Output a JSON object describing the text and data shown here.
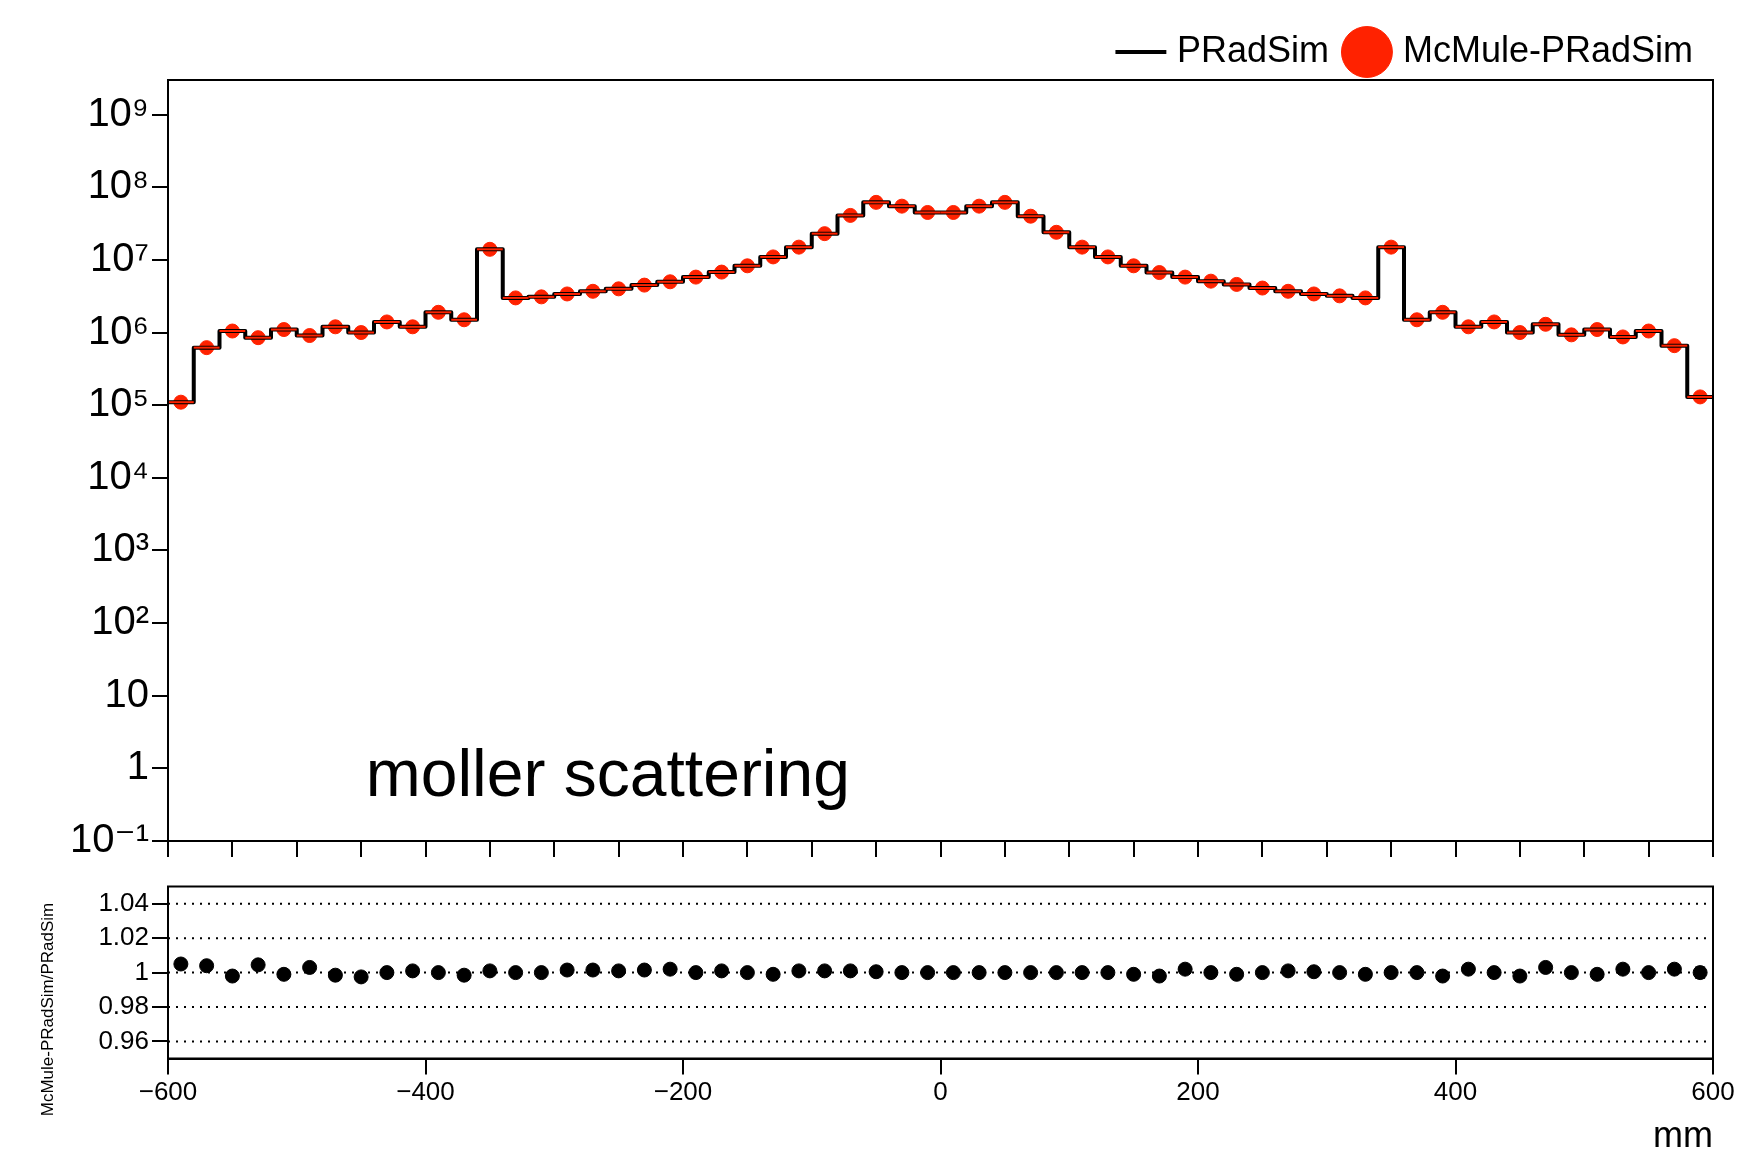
{
  "chart_data": [
    {
      "type": "histogram",
      "bins": [
        -600,
        -580,
        -560,
        -540,
        -520,
        -500,
        -480,
        -460,
        -440,
        -420,
        -400,
        -380,
        -360,
        -340,
        -320,
        -300,
        -280,
        -260,
        -240,
        -220,
        -200,
        -180,
        -160,
        -140,
        -120,
        -100,
        -80,
        -60,
        -40,
        -20,
        0,
        20,
        40,
        60,
        80,
        100,
        120,
        140,
        160,
        180,
        200,
        220,
        240,
        260,
        280,
        300,
        320,
        340,
        360,
        380,
        400,
        420,
        440,
        460,
        480,
        500,
        520,
        540,
        560,
        580,
        600
      ],
      "series": [
        {
          "name": "PRadSim",
          "color": "#000000",
          "values": [
            110000,
            620000,
            1050000,
            850000,
            1100000,
            910000,
            1200000,
            1000000,
            1400000,
            1200000,
            1900000,
            1500000,
            14000000,
            3000000,
            3100000,
            3400000,
            3700000,
            4000000,
            4500000,
            5000000,
            5800000,
            6800000,
            8300000,
            11000000,
            15000000,
            23000000,
            41000000,
            62000000,
            55000000,
            45000000,
            45000000,
            55000000,
            62000000,
            40000000,
            24000000,
            15000000,
            11000000,
            8300000,
            6700000,
            5800000,
            5100000,
            4600000,
            4100000,
            3700000,
            3400000,
            3200000,
            3000000,
            15000000,
            1500000,
            1900000,
            1200000,
            1400000,
            1000000,
            1300000,
            930000,
            1100000,
            870000,
            1050000,
            660000,
            130000
          ]
        },
        {
          "name": "McMule-PRadSim",
          "type": "scatter",
          "color": "#ff2200",
          "x": [
            -590,
            -570,
            -550,
            -530,
            -510,
            -490,
            -470,
            -450,
            -430,
            -410,
            -390,
            -370,
            -350,
            -330,
            -310,
            -290,
            -270,
            -250,
            -230,
            -210,
            -190,
            -170,
            -150,
            -130,
            -110,
            -90,
            -70,
            -50,
            -30,
            -10,
            10,
            30,
            50,
            70,
            90,
            110,
            130,
            150,
            170,
            190,
            210,
            230,
            250,
            270,
            290,
            310,
            330,
            350,
            370,
            390,
            410,
            430,
            450,
            470,
            490,
            510,
            530,
            550,
            570,
            590
          ],
          "xerrors": [
            10,
            10,
            10,
            10,
            10,
            10,
            10,
            10,
            10,
            10,
            10,
            10,
            10,
            10,
            10,
            10,
            10,
            10,
            10,
            10,
            10,
            10,
            10,
            10,
            10,
            10,
            10,
            10,
            10,
            10,
            10,
            10,
            10,
            10,
            10,
            10,
            10,
            10,
            10,
            10,
            10,
            10,
            10,
            10,
            10,
            10,
            10,
            10,
            10,
            10,
            10,
            10,
            10,
            10,
            10,
            10,
            10,
            10,
            10,
            10
          ],
          "values": [
            110000,
            620000,
            1050000,
            850000,
            1100000,
            910000,
            1200000,
            1000000,
            1400000,
            1200000,
            1900000,
            1500000,
            14000000,
            3000000,
            3100000,
            3400000,
            3700000,
            4000000,
            4500000,
            5000000,
            5800000,
            6800000,
            8300000,
            11000000,
            15000000,
            23000000,
            41000000,
            62000000,
            55000000,
            45000000,
            45000000,
            55000000,
            62000000,
            40000000,
            24000000,
            15000000,
            11000000,
            8300000,
            6700000,
            5800000,
            5100000,
            4600000,
            4100000,
            3700000,
            3400000,
            3200000,
            3000000,
            15000000,
            1500000,
            1900000,
            1200000,
            1400000,
            1000000,
            1300000,
            930000,
            1100000,
            870000,
            1050000,
            660000,
            130000
          ]
        }
      ],
      "marker": "circle",
      "log": "y",
      "xlim": [
        -600,
        600
      ],
      "xticks": [
        {
          "value": -600,
          "label": null
        },
        {
          "value": -550,
          "label": null
        },
        {
          "value": -500,
          "label": null
        },
        {
          "value": -450,
          "label": null
        },
        {
          "value": -400,
          "label": null
        },
        {
          "value": -350,
          "label": null
        },
        {
          "value": -300,
          "label": null
        },
        {
          "value": -250,
          "label": null
        },
        {
          "value": -200,
          "label": null
        },
        {
          "value": -150,
          "label": null
        },
        {
          "value": -100,
          "label": null
        },
        {
          "value": -50,
          "label": null
        },
        {
          "value": 0,
          "label": null
        },
        {
          "value": 50,
          "label": null
        },
        {
          "value": 100,
          "label": null
        },
        {
          "value": 150,
          "label": null
        },
        {
          "value": 200,
          "label": null
        },
        {
          "value": 250,
          "label": null
        },
        {
          "value": 300,
          "label": null
        },
        {
          "value": 350,
          "label": null
        },
        {
          "value": 400,
          "label": null
        },
        {
          "value": 450,
          "label": null
        },
        {
          "value": 500,
          "label": null
        },
        {
          "value": 550,
          "label": null
        },
        {
          "value": 600,
          "label": null
        }
      ],
      "ylim": [
        0.1,
        3000000000
      ],
      "yticks": [
        {
          "value": 0.1,
          "label": "10⁻¹"
        },
        1,
        10,
        {
          "value": 100,
          "label": "10²"
        },
        {
          "value": 1000,
          "label": "10³"
        },
        {
          "value": 10000,
          "label": "10⁴"
        },
        {
          "value": 100000,
          "label": "10⁵"
        },
        {
          "value": 1000000,
          "label": "10⁶"
        },
        {
          "value": 10000000,
          "label": "10⁷"
        },
        {
          "value": 100000000,
          "label": "10⁸"
        },
        {
          "value": 1000000000,
          "label": "10⁹"
        }
      ],
      "tick_labels": "y",
      "grid": false,
      "legend": "top right",
      "annotations": [
        "moller scattering"
      ]
    },
    {
      "type": "scatter",
      "x": [
        -590,
        -570,
        -550,
        -530,
        -510,
        -490,
        -470,
        -450,
        -430,
        -410,
        -390,
        -370,
        -350,
        -330,
        -310,
        -290,
        -270,
        -250,
        -230,
        -210,
        -190,
        -170,
        -150,
        -130,
        -110,
        -90,
        -70,
        -50,
        -30,
        -10,
        10,
        30,
        50,
        70,
        90,
        110,
        130,
        150,
        170,
        190,
        210,
        230,
        250,
        270,
        290,
        310,
        330,
        350,
        370,
        390,
        410,
        430,
        450,
        470,
        490,
        510,
        530,
        550,
        570,
        590
      ],
      "values": [
        1.005,
        1.004,
        0.998,
        1.0045,
        0.999,
        1.003,
        0.9985,
        0.9975,
        1.0,
        1.001,
        1.0,
        0.9985,
        1.001,
        1.0,
        1.0,
        1.0015,
        1.0015,
        1.001,
        1.0015,
        1.002,
        1.0,
        1.001,
        1.0,
        0.999,
        1.001,
        1.001,
        1.001,
        1.0005,
        1.0,
        1.0,
        1.0,
        1.0,
        1.0,
        1.0,
        1.0,
        1.0,
        1.0,
        0.999,
        0.998,
        1.002,
        1.0,
        0.999,
        1.0,
        1.001,
        1.0005,
        1.0,
        0.999,
        1.0,
        1.0,
        0.998,
        1.002,
        1.0,
        0.998,
        1.003,
        1.0,
        0.999,
        1.002,
        1.0,
        1.002,
        1.0
      ],
      "errors": [
        null,
        null,
        null,
        null,
        null,
        null,
        null,
        null,
        null,
        null,
        null,
        null,
        null,
        null,
        null,
        null,
        null,
        null,
        null,
        null,
        null,
        null,
        null,
        null,
        null,
        null,
        null,
        null,
        null,
        null,
        null,
        null,
        null,
        null,
        null,
        null,
        null,
        null,
        null,
        null,
        null,
        null,
        null,
        null,
        null,
        null,
        null,
        null,
        null,
        null,
        null,
        null,
        null,
        null,
        null,
        null,
        null,
        null,
        null,
        0.003
      ],
      "color": "#000000",
      "marker": "circle",
      "xlim": [
        -600,
        600
      ],
      "xticks": [
        -600,
        -400,
        -200,
        0,
        200,
        400,
        600
      ],
      "ylim": [
        0.95,
        1.05
      ],
      "yticks": [
        0.96,
        0.98,
        1,
        1.02,
        1.04
      ],
      "grid": "y",
      "line_style": "dotted",
      "xlabel": "mm",
      "ylabel": "McMule-PRadSim/PRadSim",
      "legend": false
    }
  ]
}
